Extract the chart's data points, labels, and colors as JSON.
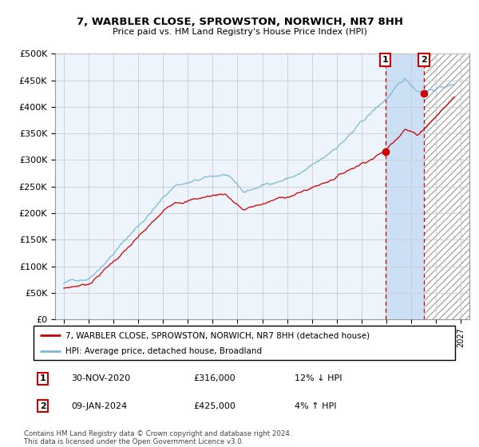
{
  "title": "7, WARBLER CLOSE, SPROWSTON, NORWICH, NR7 8HH",
  "subtitle": "Price paid vs. HM Land Registry's House Price Index (HPI)",
  "legend_line1": "7, WARBLER CLOSE, SPROWSTON, NORWICH, NR7 8HH (detached house)",
  "legend_line2": "HPI: Average price, detached house, Broadland",
  "annotation1_date": "30-NOV-2020",
  "annotation1_price": "£316,000",
  "annotation1_hpi": "12% ↓ HPI",
  "annotation2_date": "09-JAN-2024",
  "annotation2_price": "£425,000",
  "annotation2_hpi": "4% ↑ HPI",
  "footer": "Contains HM Land Registry data © Crown copyright and database right 2024.\nThis data is licensed under the Open Government Licence v3.0.",
  "hpi_color": "#7ab8d9",
  "price_color": "#cc0000",
  "marker_color": "#cc0000",
  "grid_color": "#cccccc",
  "plot_bg": "#eef4fb",
  "shade_between": "#d0e4f7",
  "ylim": [
    0,
    500000
  ],
  "yticks": [
    0,
    50000,
    100000,
    150000,
    200000,
    250000,
    300000,
    350000,
    400000,
    450000,
    500000
  ],
  "sale1_year": 2020.92,
  "sale2_year": 2024.04,
  "sale1_value": 316000,
  "sale2_value": 425000,
  "xlim_start": 1994.3,
  "xlim_end": 2027.7
}
